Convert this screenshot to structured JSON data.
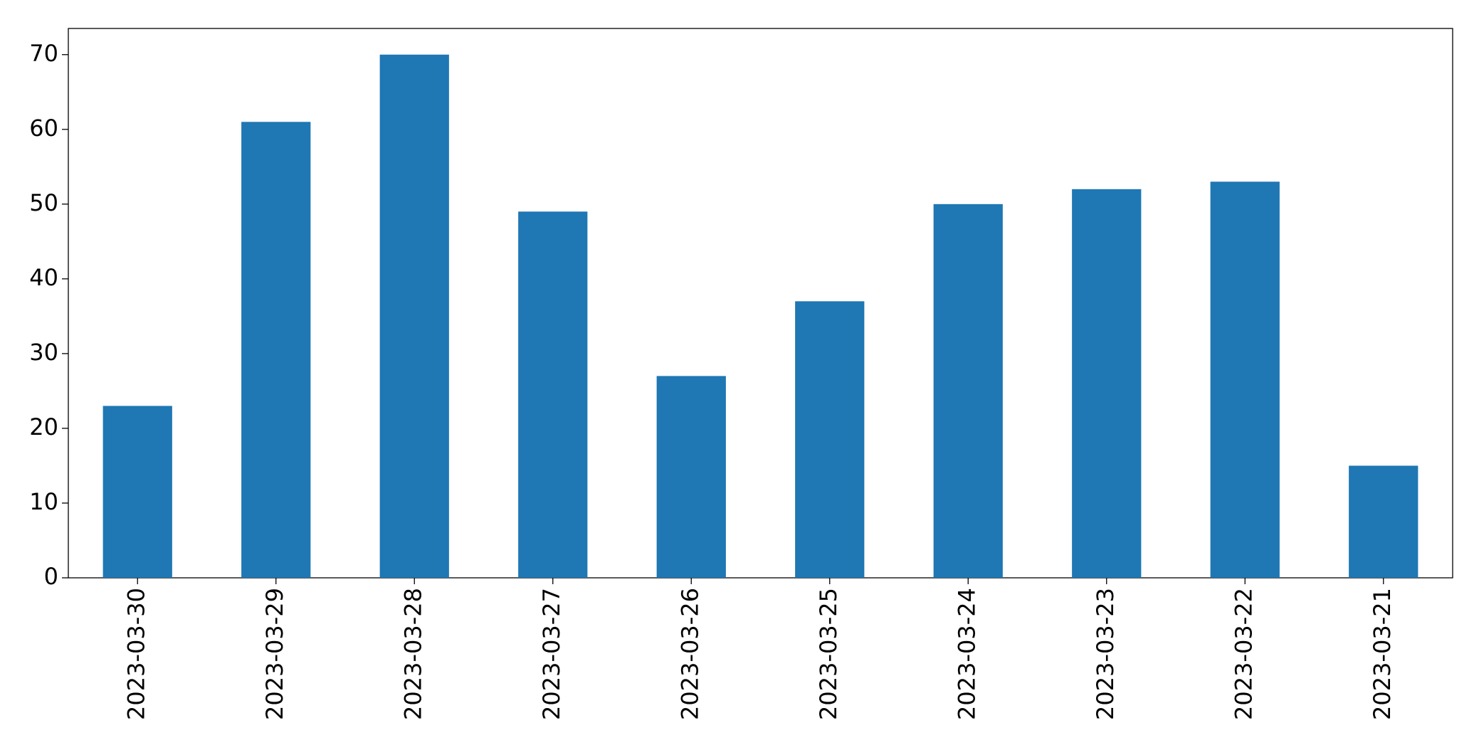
{
  "chart_data": {
    "type": "bar",
    "categories": [
      "2023-03-30",
      "2023-03-29",
      "2023-03-28",
      "2023-03-27",
      "2023-03-26",
      "2023-03-25",
      "2023-03-24",
      "2023-03-23",
      "2023-03-22",
      "2023-03-21"
    ],
    "values": [
      23,
      61,
      70,
      49,
      27,
      37,
      50,
      52,
      53,
      15
    ],
    "color": "#1f77b4",
    "ylim": [
      0,
      73.5
    ],
    "yticks": [
      0,
      10,
      20,
      30,
      40,
      50,
      60,
      70
    ],
    "grid": false
  }
}
